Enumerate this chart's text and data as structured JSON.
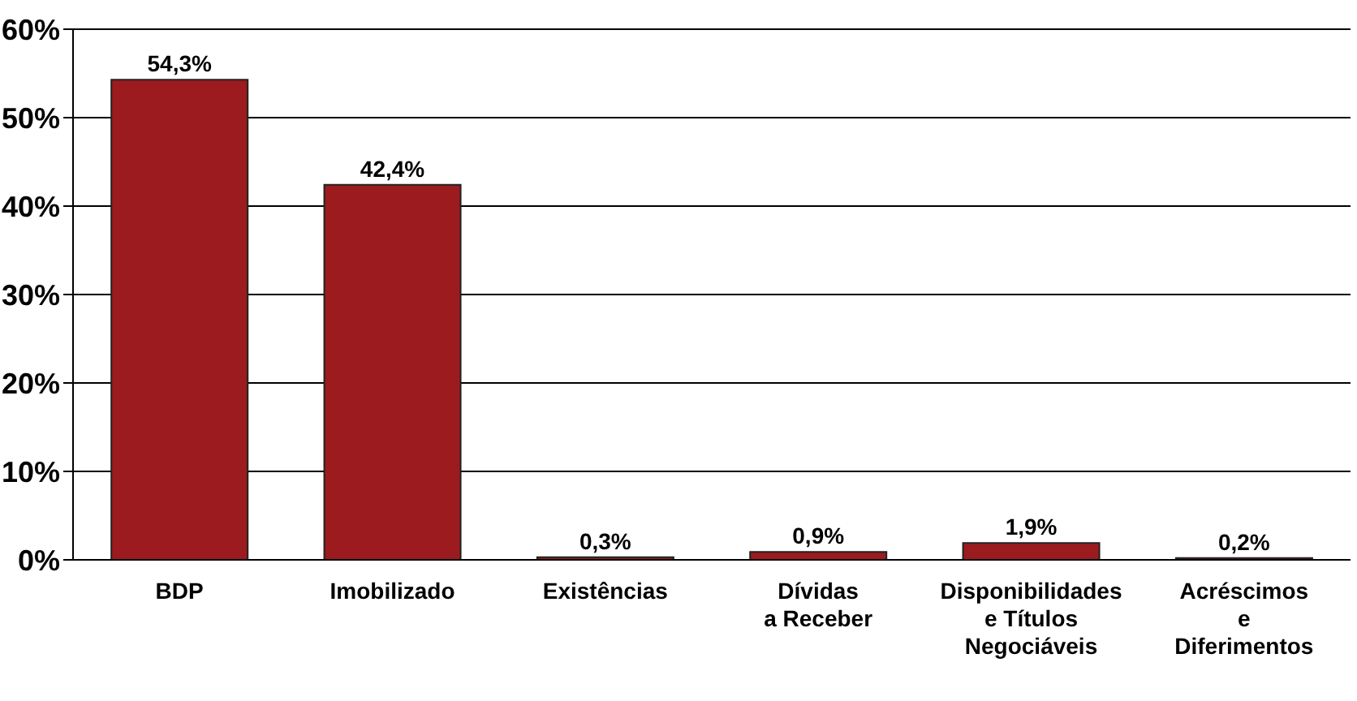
{
  "chart_data": {
    "type": "bar",
    "categories": [
      "BDP",
      "Imobilizado",
      "Existências",
      "Dívidas\na Receber",
      "Disponibilidades\ne Títulos\nNegociáveis",
      "Acréscimos\ne\nDiferimentos"
    ],
    "values": [
      54.3,
      42.4,
      0.3,
      0.9,
      1.9,
      0.2
    ],
    "value_labels": [
      "54,3%",
      "42,4%",
      "0,3%",
      "0,9%",
      "1,9%",
      "0,2%"
    ],
    "color": "#9b1b1f",
    "ylim": [
      0,
      60
    ],
    "yticks": [
      {
        "value": 0,
        "label": "0%"
      },
      {
        "value": 10,
        "label": "10%"
      },
      {
        "value": 20,
        "label": "20%"
      },
      {
        "value": 30,
        "label": "30%"
      },
      {
        "value": 40,
        "label": "40%"
      },
      {
        "value": 50,
        "label": "50%"
      },
      {
        "value": 60,
        "label": "60%"
      }
    ],
    "grid": "y",
    "legend": false
  }
}
